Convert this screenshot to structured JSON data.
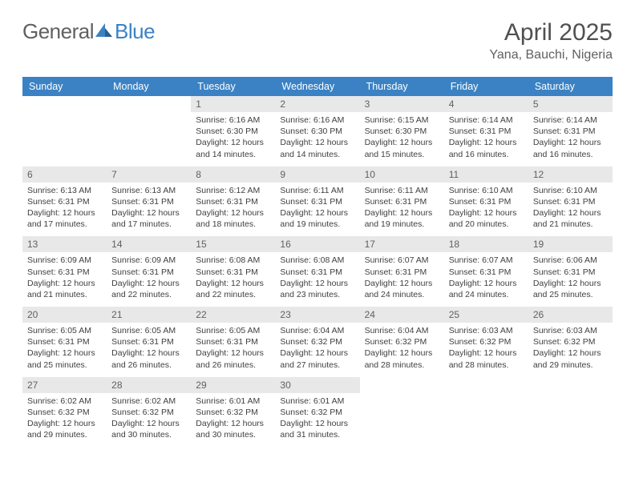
{
  "logo": {
    "text_general": "General",
    "text_blue": "Blue"
  },
  "title": {
    "month_year": "April 2025",
    "location": "Yana, Bauchi, Nigeria"
  },
  "colors": {
    "header_bg": "#3b82c4",
    "header_text": "#ffffff",
    "daynum_bg": "#e8e8e8",
    "daynum_text": "#606060",
    "body_text": "#404040",
    "logo_gray": "#606060",
    "logo_blue": "#3b82c4",
    "page_bg": "#ffffff"
  },
  "typography": {
    "title_fontsize": 30,
    "location_fontsize": 16,
    "dayheader_fontsize": 12.5,
    "daynum_fontsize": 12,
    "cell_fontsize": 10.5
  },
  "day_headers": [
    "Sunday",
    "Monday",
    "Tuesday",
    "Wednesday",
    "Thursday",
    "Friday",
    "Saturday"
  ],
  "weeks": [
    [
      {
        "empty": true
      },
      {
        "empty": true
      },
      {
        "day": "1",
        "sunrise": "Sunrise: 6:16 AM",
        "sunset": "Sunset: 6:30 PM",
        "daylight1": "Daylight: 12 hours",
        "daylight2": "and 14 minutes."
      },
      {
        "day": "2",
        "sunrise": "Sunrise: 6:16 AM",
        "sunset": "Sunset: 6:30 PM",
        "daylight1": "Daylight: 12 hours",
        "daylight2": "and 14 minutes."
      },
      {
        "day": "3",
        "sunrise": "Sunrise: 6:15 AM",
        "sunset": "Sunset: 6:30 PM",
        "daylight1": "Daylight: 12 hours",
        "daylight2": "and 15 minutes."
      },
      {
        "day": "4",
        "sunrise": "Sunrise: 6:14 AM",
        "sunset": "Sunset: 6:31 PM",
        "daylight1": "Daylight: 12 hours",
        "daylight2": "and 16 minutes."
      },
      {
        "day": "5",
        "sunrise": "Sunrise: 6:14 AM",
        "sunset": "Sunset: 6:31 PM",
        "daylight1": "Daylight: 12 hours",
        "daylight2": "and 16 minutes."
      }
    ],
    [
      {
        "day": "6",
        "sunrise": "Sunrise: 6:13 AM",
        "sunset": "Sunset: 6:31 PM",
        "daylight1": "Daylight: 12 hours",
        "daylight2": "and 17 minutes."
      },
      {
        "day": "7",
        "sunrise": "Sunrise: 6:13 AM",
        "sunset": "Sunset: 6:31 PM",
        "daylight1": "Daylight: 12 hours",
        "daylight2": "and 17 minutes."
      },
      {
        "day": "8",
        "sunrise": "Sunrise: 6:12 AM",
        "sunset": "Sunset: 6:31 PM",
        "daylight1": "Daylight: 12 hours",
        "daylight2": "and 18 minutes."
      },
      {
        "day": "9",
        "sunrise": "Sunrise: 6:11 AM",
        "sunset": "Sunset: 6:31 PM",
        "daylight1": "Daylight: 12 hours",
        "daylight2": "and 19 minutes."
      },
      {
        "day": "10",
        "sunrise": "Sunrise: 6:11 AM",
        "sunset": "Sunset: 6:31 PM",
        "daylight1": "Daylight: 12 hours",
        "daylight2": "and 19 minutes."
      },
      {
        "day": "11",
        "sunrise": "Sunrise: 6:10 AM",
        "sunset": "Sunset: 6:31 PM",
        "daylight1": "Daylight: 12 hours",
        "daylight2": "and 20 minutes."
      },
      {
        "day": "12",
        "sunrise": "Sunrise: 6:10 AM",
        "sunset": "Sunset: 6:31 PM",
        "daylight1": "Daylight: 12 hours",
        "daylight2": "and 21 minutes."
      }
    ],
    [
      {
        "day": "13",
        "sunrise": "Sunrise: 6:09 AM",
        "sunset": "Sunset: 6:31 PM",
        "daylight1": "Daylight: 12 hours",
        "daylight2": "and 21 minutes."
      },
      {
        "day": "14",
        "sunrise": "Sunrise: 6:09 AM",
        "sunset": "Sunset: 6:31 PM",
        "daylight1": "Daylight: 12 hours",
        "daylight2": "and 22 minutes."
      },
      {
        "day": "15",
        "sunrise": "Sunrise: 6:08 AM",
        "sunset": "Sunset: 6:31 PM",
        "daylight1": "Daylight: 12 hours",
        "daylight2": "and 22 minutes."
      },
      {
        "day": "16",
        "sunrise": "Sunrise: 6:08 AM",
        "sunset": "Sunset: 6:31 PM",
        "daylight1": "Daylight: 12 hours",
        "daylight2": "and 23 minutes."
      },
      {
        "day": "17",
        "sunrise": "Sunrise: 6:07 AM",
        "sunset": "Sunset: 6:31 PM",
        "daylight1": "Daylight: 12 hours",
        "daylight2": "and 24 minutes."
      },
      {
        "day": "18",
        "sunrise": "Sunrise: 6:07 AM",
        "sunset": "Sunset: 6:31 PM",
        "daylight1": "Daylight: 12 hours",
        "daylight2": "and 24 minutes."
      },
      {
        "day": "19",
        "sunrise": "Sunrise: 6:06 AM",
        "sunset": "Sunset: 6:31 PM",
        "daylight1": "Daylight: 12 hours",
        "daylight2": "and 25 minutes."
      }
    ],
    [
      {
        "day": "20",
        "sunrise": "Sunrise: 6:05 AM",
        "sunset": "Sunset: 6:31 PM",
        "daylight1": "Daylight: 12 hours",
        "daylight2": "and 25 minutes."
      },
      {
        "day": "21",
        "sunrise": "Sunrise: 6:05 AM",
        "sunset": "Sunset: 6:31 PM",
        "daylight1": "Daylight: 12 hours",
        "daylight2": "and 26 minutes."
      },
      {
        "day": "22",
        "sunrise": "Sunrise: 6:05 AM",
        "sunset": "Sunset: 6:31 PM",
        "daylight1": "Daylight: 12 hours",
        "daylight2": "and 26 minutes."
      },
      {
        "day": "23",
        "sunrise": "Sunrise: 6:04 AM",
        "sunset": "Sunset: 6:32 PM",
        "daylight1": "Daylight: 12 hours",
        "daylight2": "and 27 minutes."
      },
      {
        "day": "24",
        "sunrise": "Sunrise: 6:04 AM",
        "sunset": "Sunset: 6:32 PM",
        "daylight1": "Daylight: 12 hours",
        "daylight2": "and 28 minutes."
      },
      {
        "day": "25",
        "sunrise": "Sunrise: 6:03 AM",
        "sunset": "Sunset: 6:32 PM",
        "daylight1": "Daylight: 12 hours",
        "daylight2": "and 28 minutes."
      },
      {
        "day": "26",
        "sunrise": "Sunrise: 6:03 AM",
        "sunset": "Sunset: 6:32 PM",
        "daylight1": "Daylight: 12 hours",
        "daylight2": "and 29 minutes."
      }
    ],
    [
      {
        "day": "27",
        "sunrise": "Sunrise: 6:02 AM",
        "sunset": "Sunset: 6:32 PM",
        "daylight1": "Daylight: 12 hours",
        "daylight2": "and 29 minutes."
      },
      {
        "day": "28",
        "sunrise": "Sunrise: 6:02 AM",
        "sunset": "Sunset: 6:32 PM",
        "daylight1": "Daylight: 12 hours",
        "daylight2": "and 30 minutes."
      },
      {
        "day": "29",
        "sunrise": "Sunrise: 6:01 AM",
        "sunset": "Sunset: 6:32 PM",
        "daylight1": "Daylight: 12 hours",
        "daylight2": "and 30 minutes."
      },
      {
        "day": "30",
        "sunrise": "Sunrise: 6:01 AM",
        "sunset": "Sunset: 6:32 PM",
        "daylight1": "Daylight: 12 hours",
        "daylight2": "and 31 minutes."
      },
      {
        "empty": true
      },
      {
        "empty": true
      },
      {
        "empty": true
      }
    ]
  ]
}
